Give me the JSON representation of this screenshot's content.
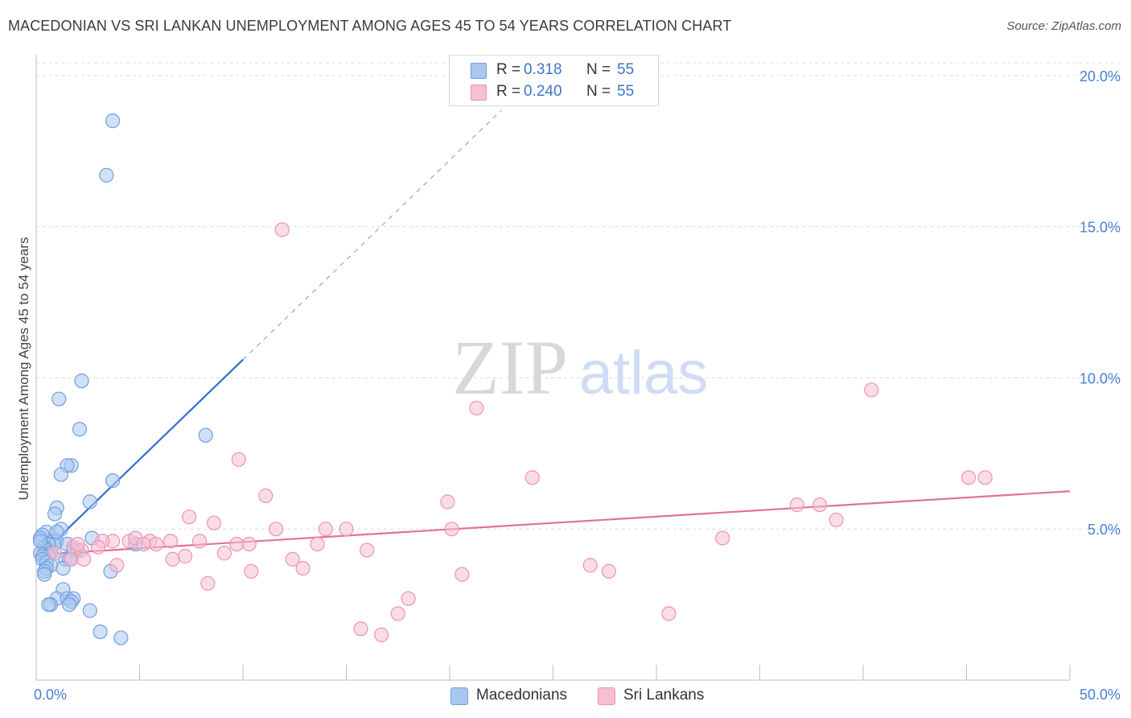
{
  "header": {
    "title": "MACEDONIAN VS SRI LANKAN UNEMPLOYMENT AMONG AGES 45 TO 54 YEARS CORRELATION CHART",
    "source": "Source: ZipAtlas.com"
  },
  "legend": {
    "r_label": "R =",
    "n_label": "N =",
    "entries": [
      {
        "r": "0.318",
        "n": "55"
      },
      {
        "r": "0.240",
        "n": "55"
      }
    ]
  },
  "watermark": {
    "zip": "ZIP",
    "atlas": "atlas"
  },
  "colors": {
    "macedonians_fill": "#a9c8f0",
    "macedonians_stroke": "#6f9ee0",
    "macedonians_line": "#2f6fcf",
    "srilankans_fill": "#f6bfd2",
    "srilankans_stroke": "#ee93b3",
    "srilankans_line": "#e2719a",
    "tick_label": "#4a7fd4"
  },
  "chart_data": {
    "type": "scatter",
    "title": "MACEDONIAN VS SRI LANKAN UNEMPLOYMENT AMONG AGES 45 TO 54 YEARS CORRELATION CHART",
    "xlabel": "",
    "ylabel": "Unemployment Among Ages 45 to 54 years",
    "xlim": [
      0,
      50
    ],
    "ylim": [
      0,
      20.5
    ],
    "x_tick_labels": [
      "0.0%",
      "50.0%"
    ],
    "y_ticks": [
      5,
      10,
      15,
      20
    ],
    "y_tick_labels": [
      "5.0%",
      "10.0%",
      "15.0%",
      "20.0%"
    ],
    "series": [
      {
        "name": "Macedonians",
        "r": 0.318,
        "n": 55,
        "trend": {
          "x0": 0.0,
          "y0": 4.0,
          "x1": 10.0,
          "y1": 10.6,
          "dash_to_x": 22.5
        },
        "points": [
          [
            3.7,
            18.5
          ],
          [
            3.4,
            16.7
          ],
          [
            2.2,
            9.9
          ],
          [
            1.1,
            9.3
          ],
          [
            2.1,
            8.3
          ],
          [
            8.2,
            8.1
          ],
          [
            1.7,
            7.1
          ],
          [
            1.5,
            7.1
          ],
          [
            1.2,
            6.8
          ],
          [
            3.7,
            6.6
          ],
          [
            2.6,
            5.9
          ],
          [
            1.0,
            5.7
          ],
          [
            0.9,
            5.5
          ],
          [
            1.2,
            5.0
          ],
          [
            0.5,
            4.9
          ],
          [
            0.3,
            4.8
          ],
          [
            0.2,
            4.7
          ],
          [
            2.7,
            4.7
          ],
          [
            0.8,
            4.6
          ],
          [
            1.0,
            4.6
          ],
          [
            0.9,
            4.5
          ],
          [
            1.5,
            4.5
          ],
          [
            0.6,
            4.5
          ],
          [
            4.8,
            4.5
          ],
          [
            0.4,
            4.4
          ],
          [
            1.8,
            4.3
          ],
          [
            2.0,
            4.3
          ],
          [
            0.5,
            4.3
          ],
          [
            0.2,
            4.2
          ],
          [
            0.7,
            4.2
          ],
          [
            0.6,
            4.1
          ],
          [
            0.3,
            4.1
          ],
          [
            1.4,
            4.0
          ],
          [
            1.6,
            4.0
          ],
          [
            0.3,
            4.0
          ],
          [
            0.5,
            3.9
          ],
          [
            0.7,
            3.8
          ],
          [
            0.5,
            3.7
          ],
          [
            1.3,
            3.7
          ],
          [
            0.4,
            3.6
          ],
          [
            3.6,
            3.6
          ],
          [
            0.4,
            3.5
          ],
          [
            1.3,
            3.0
          ],
          [
            1.0,
            2.7
          ],
          [
            1.5,
            2.7
          ],
          [
            1.8,
            2.7
          ],
          [
            1.7,
            2.6
          ],
          [
            0.7,
            2.5
          ],
          [
            0.6,
            2.5
          ],
          [
            1.6,
            2.5
          ],
          [
            2.6,
            2.3
          ],
          [
            3.1,
            1.6
          ],
          [
            4.1,
            1.4
          ],
          [
            0.2,
            4.6
          ],
          [
            1.0,
            4.9
          ]
        ]
      },
      {
        "name": "Sri Lankans",
        "r": 0.24,
        "n": 55,
        "trend": {
          "x0": 0.0,
          "y0": 4.15,
          "x1": 50.0,
          "y1": 6.25
        },
        "points": [
          [
            11.9,
            14.9
          ],
          [
            40.4,
            9.6
          ],
          [
            21.3,
            9.0
          ],
          [
            9.8,
            7.3
          ],
          [
            24.0,
            6.7
          ],
          [
            45.1,
            6.7
          ],
          [
            45.9,
            6.7
          ],
          [
            11.1,
            6.1
          ],
          [
            19.9,
            5.9
          ],
          [
            36.8,
            5.8
          ],
          [
            37.9,
            5.8
          ],
          [
            7.4,
            5.4
          ],
          [
            38.7,
            5.3
          ],
          [
            8.6,
            5.2
          ],
          [
            11.6,
            5.0
          ],
          [
            14.0,
            5.0
          ],
          [
            15.0,
            5.0
          ],
          [
            20.1,
            5.0
          ],
          [
            4.5,
            4.6
          ],
          [
            7.9,
            4.6
          ],
          [
            33.2,
            4.7
          ],
          [
            4.8,
            4.7
          ],
          [
            5.5,
            4.6
          ],
          [
            6.5,
            4.6
          ],
          [
            3.7,
            4.6
          ],
          [
            3.2,
            4.6
          ],
          [
            5.8,
            4.5
          ],
          [
            5.2,
            4.5
          ],
          [
            9.7,
            4.5
          ],
          [
            10.3,
            4.5
          ],
          [
            13.6,
            4.5
          ],
          [
            3.0,
            4.4
          ],
          [
            1.8,
            4.4
          ],
          [
            2.2,
            4.3
          ],
          [
            16.0,
            4.3
          ],
          [
            9.1,
            4.2
          ],
          [
            6.6,
            4.0
          ],
          [
            7.2,
            4.1
          ],
          [
            2.3,
            4.0
          ],
          [
            1.7,
            4.0
          ],
          [
            12.4,
            4.0
          ],
          [
            3.9,
            3.8
          ],
          [
            26.8,
            3.8
          ],
          [
            12.9,
            3.7
          ],
          [
            27.7,
            3.6
          ],
          [
            10.4,
            3.6
          ],
          [
            20.6,
            3.5
          ],
          [
            8.3,
            3.2
          ],
          [
            18.0,
            2.7
          ],
          [
            17.5,
            2.2
          ],
          [
            30.6,
            2.2
          ],
          [
            15.7,
            1.7
          ],
          [
            16.7,
            1.5
          ],
          [
            0.9,
            4.2
          ],
          [
            2.0,
            4.5
          ]
        ]
      }
    ]
  },
  "bottom_legend": [
    "Macedonians",
    "Sri Lankans"
  ]
}
